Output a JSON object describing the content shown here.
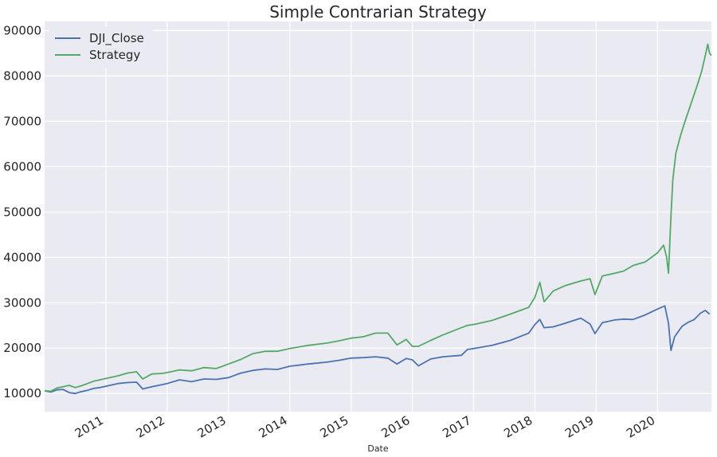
{
  "chart_data": {
    "type": "line",
    "title": "Simple Contrarian Strategy",
    "xlabel": "Date",
    "ylabel": "",
    "xlim": [
      2010.0,
      2020.88
    ],
    "ylim": [
      6000,
      92000
    ],
    "x_ticks": [
      2011,
      2012,
      2013,
      2014,
      2015,
      2016,
      2017,
      2018,
      2019,
      2020
    ],
    "x_tick_labels": [
      "2011",
      "2012",
      "2013",
      "2014",
      "2015",
      "2016",
      "2017",
      "2018",
      "2019",
      "2020"
    ],
    "y_ticks": [
      10000,
      20000,
      30000,
      40000,
      50000,
      60000,
      70000,
      80000,
      90000
    ],
    "y_tick_labels": [
      "10000",
      "20000",
      "30000",
      "40000",
      "50000",
      "60000",
      "70000",
      "80000",
      "90000"
    ],
    "grid": true,
    "legend": "top-left",
    "series": [
      {
        "name": "DJI_Close",
        "color": "#4c72b0",
        "x": [
          2010.0,
          2010.1,
          2010.2,
          2010.3,
          2010.4,
          2010.5,
          2010.6,
          2010.7,
          2010.8,
          2010.9,
          2011.0,
          2011.2,
          2011.35,
          2011.5,
          2011.6,
          2011.75,
          2011.9,
          2012.0,
          2012.2,
          2012.4,
          2012.6,
          2012.8,
          2013.0,
          2013.2,
          2013.4,
          2013.6,
          2013.8,
          2014.0,
          2014.3,
          2014.6,
          2014.8,
          2015.0,
          2015.2,
          2015.4,
          2015.6,
          2015.75,
          2015.9,
          2016.0,
          2016.1,
          2016.3,
          2016.5,
          2016.8,
          2016.9,
          2017.0,
          2017.3,
          2017.6,
          2017.9,
          2018.0,
          2018.08,
          2018.15,
          2018.3,
          2018.5,
          2018.75,
          2018.9,
          2018.98,
          2019.1,
          2019.3,
          2019.45,
          2019.6,
          2019.8,
          2020.0,
          2020.12,
          2020.18,
          2020.22,
          2020.28,
          2020.4,
          2020.5,
          2020.6,
          2020.7,
          2020.78,
          2020.85
        ],
        "values": [
          10600,
          10300,
          10800,
          10900,
          10200,
          10000,
          10400,
          10700,
          11100,
          11300,
          11600,
          12200,
          12400,
          12500,
          11000,
          11500,
          11900,
          12200,
          13000,
          12600,
          13200,
          13100,
          13500,
          14500,
          15100,
          15400,
          15300,
          16000,
          16500,
          16900,
          17300,
          17800,
          17900,
          18100,
          17800,
          16500,
          17700,
          17400,
          16100,
          17600,
          18100,
          18400,
          19700,
          19900,
          20600,
          21700,
          23300,
          25200,
          26300,
          24500,
          24700,
          25500,
          26600,
          25300,
          23200,
          25600,
          26200,
          26400,
          26300,
          27300,
          28600,
          29300,
          25500,
          19500,
          22500,
          24800,
          25700,
          26300,
          27700,
          28300,
          27500
        ]
      },
      {
        "name": "Strategy",
        "color": "#55a868",
        "x": [
          2010.0,
          2010.1,
          2010.2,
          2010.3,
          2010.4,
          2010.5,
          2010.6,
          2010.7,
          2010.8,
          2010.9,
          2011.0,
          2011.2,
          2011.35,
          2011.5,
          2011.6,
          2011.75,
          2011.9,
          2012.0,
          2012.2,
          2012.4,
          2012.6,
          2012.8,
          2013.0,
          2013.2,
          2013.4,
          2013.6,
          2013.8,
          2014.0,
          2014.3,
          2014.6,
          2014.8,
          2015.0,
          2015.2,
          2015.4,
          2015.6,
          2015.75,
          2015.9,
          2016.0,
          2016.1,
          2016.3,
          2016.5,
          2016.8,
          2016.9,
          2017.0,
          2017.3,
          2017.6,
          2017.9,
          2018.0,
          2018.08,
          2018.15,
          2018.3,
          2018.5,
          2018.75,
          2018.9,
          2018.98,
          2019.1,
          2019.3,
          2019.45,
          2019.6,
          2019.8,
          2020.0,
          2020.1,
          2020.15,
          2020.18,
          2020.22,
          2020.25,
          2020.3,
          2020.38,
          2020.45,
          2020.55,
          2020.65,
          2020.72,
          2020.78,
          2020.82,
          2020.85,
          2020.88
        ],
        "values": [
          10600,
          10500,
          11200,
          11500,
          11800,
          11300,
          11700,
          12200,
          12700,
          13000,
          13300,
          13900,
          14500,
          14800,
          13200,
          14300,
          14400,
          14600,
          15200,
          15000,
          15700,
          15500,
          16500,
          17500,
          18800,
          19300,
          19300,
          19900,
          20600,
          21100,
          21600,
          22200,
          22500,
          23300,
          23300,
          20700,
          21900,
          20400,
          20400,
          21700,
          22900,
          24500,
          25000,
          25200,
          26100,
          27500,
          29000,
          31200,
          34500,
          30200,
          32600,
          33800,
          34800,
          35300,
          31800,
          35900,
          36500,
          37000,
          38200,
          39000,
          41000,
          42700,
          40000,
          36500,
          49000,
          57000,
          63000,
          67000,
          70000,
          74000,
          78000,
          81000,
          84500,
          87000,
          85000,
          84500
        ]
      }
    ]
  }
}
